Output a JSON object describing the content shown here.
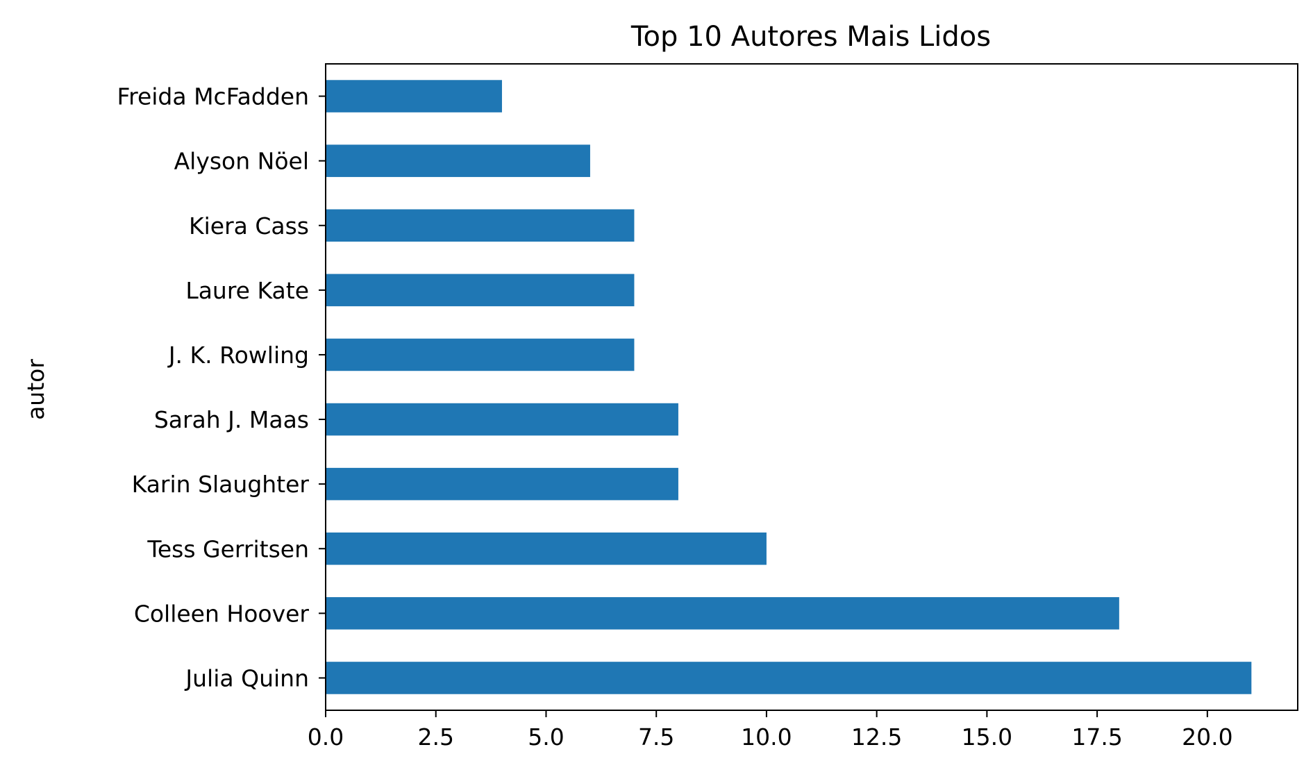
{
  "chart_data": {
    "type": "bar",
    "orientation": "horizontal",
    "title": "Top 10 Autores Mais Lidos",
    "xlabel": "",
    "ylabel": "autor",
    "categories": [
      "Freida McFadden",
      "Alyson Nöel",
      "Kiera Cass",
      "Laure Kate",
      "J. K. Rowling",
      "Sarah J. Maas",
      "Karin Slaughter",
      "Tess Gerritsen",
      "Colleen Hoover",
      "Julia Quinn"
    ],
    "values": [
      4,
      6,
      7,
      7,
      7,
      8,
      8,
      10,
      18,
      21
    ],
    "xlim": [
      0,
      22.05
    ],
    "xticks": [
      "0.0",
      "2.5",
      "5.0",
      "7.5",
      "10.0",
      "12.5",
      "15.0",
      "17.5",
      "20.0"
    ],
    "bar_color": "#1f77b4",
    "grid": false,
    "legend": "none"
  }
}
